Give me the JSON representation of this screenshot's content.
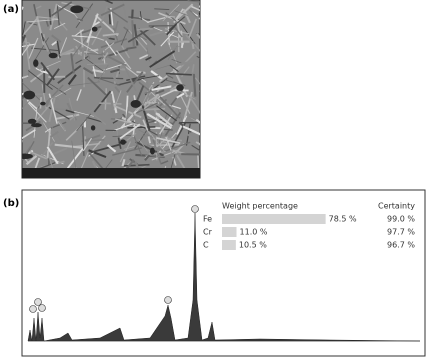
{
  "panel_a": {
    "label": "(a)"
  },
  "panel_b": {
    "label": "(b)"
  },
  "chart_data": {
    "type": "bar",
    "orientation": "horizontal",
    "header": "Weight percentage",
    "certainty_header": "Certainty",
    "categories": [
      "Fe",
      "Cr",
      "C"
    ],
    "values": [
      78.5,
      11.0,
      10.5
    ],
    "value_labels": [
      "78.5 %",
      "11.0 %",
      "10.5 %"
    ],
    "certainty": [
      "99.0 %",
      "97.7 %",
      "96.7 %"
    ],
    "color": "#d4d4d4",
    "xlim": [
      0,
      100
    ]
  }
}
